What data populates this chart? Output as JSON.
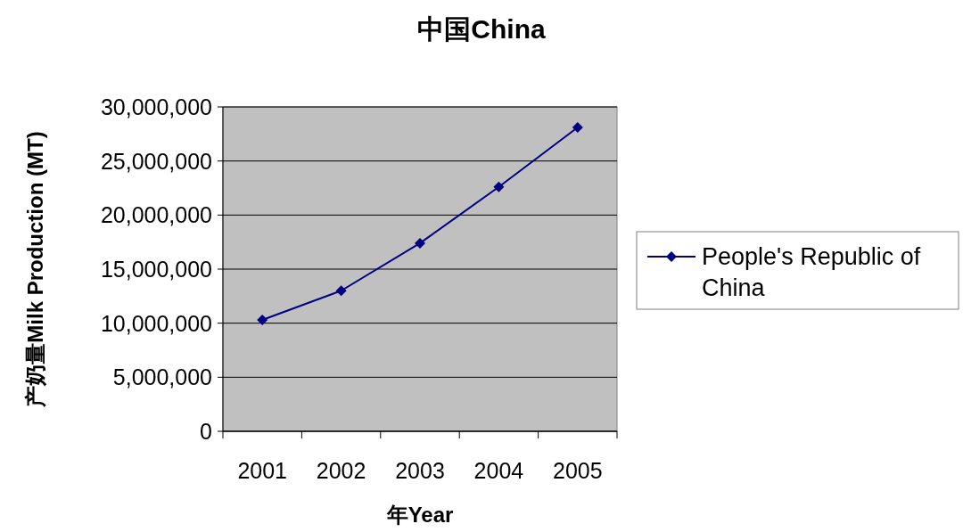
{
  "chart_data": {
    "type": "line",
    "title": "中国China",
    "xlabel": "年Year",
    "ylabel": "产奶量Milk Production (MT)",
    "categories": [
      "2001",
      "2002",
      "2003",
      "2004",
      "2005"
    ],
    "series": [
      {
        "name": "People's Republic of China",
        "color": "#000080",
        "values": [
          10300000,
          13000000,
          17400000,
          22600000,
          28100000
        ]
      }
    ],
    "ylim": [
      0,
      30000000
    ],
    "yticks": [
      {
        "value": 0,
        "label": "0"
      },
      {
        "value": 5000000,
        "label": "5,000,000"
      },
      {
        "value": 10000000,
        "label": "10,000,000"
      },
      {
        "value": 15000000,
        "label": "15,000,000"
      },
      {
        "value": 20000000,
        "label": "20,000,000"
      },
      {
        "value": 25000000,
        "label": "25,000,000"
      },
      {
        "value": 30000000,
        "label": "30,000,000"
      }
    ],
    "grid": "y",
    "legend": "right",
    "marker": "diamond",
    "line_style": "solid"
  }
}
